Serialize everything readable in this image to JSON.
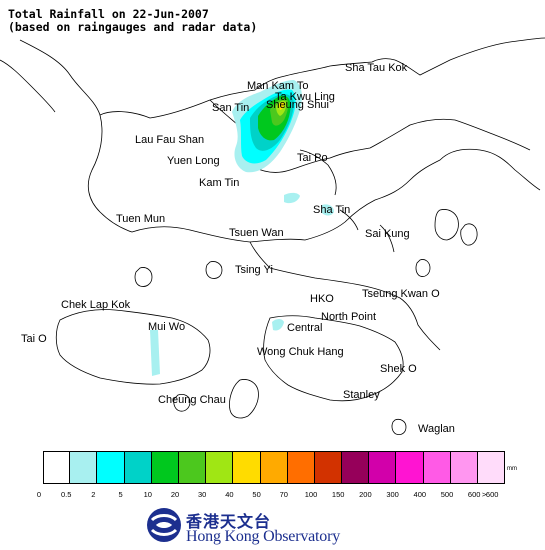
{
  "title": {
    "line1": "Total Rainfall on 22-Jun-2007",
    "line2": "(based on raingauges and radar data)"
  },
  "places": [
    {
      "name": "Sha Tau Kok"
    },
    {
      "name": "Man Kam To"
    },
    {
      "name": "Ta Kwu Ling"
    },
    {
      "name": "San Tin"
    },
    {
      "name": "Sheung Shui"
    },
    {
      "name": "Lau Fau Shan"
    },
    {
      "name": "Yuen Long"
    },
    {
      "name": "Tai Po"
    },
    {
      "name": "Kam Tin"
    },
    {
      "name": "Sha Tin"
    },
    {
      "name": "Tuen Mun"
    },
    {
      "name": "Tsuen Wan"
    },
    {
      "name": "Sai Kung"
    },
    {
      "name": "Tsing Yi"
    },
    {
      "name": "Chek Lap Kok"
    },
    {
      "name": "HKO"
    },
    {
      "name": "Tseung Kwan O"
    },
    {
      "name": "North Point"
    },
    {
      "name": "Mui Wo"
    },
    {
      "name": "Central"
    },
    {
      "name": "Tai O"
    },
    {
      "name": "Wong Chuk Hang"
    },
    {
      "name": "Shek O"
    },
    {
      "name": "Cheung Chau"
    },
    {
      "name": "Stanley"
    },
    {
      "name": "Waglan"
    }
  ],
  "legend": {
    "unit": "mm",
    "colors": [
      "#ffffff",
      "#a8f0f0",
      "#00ffff",
      "#00d2c8",
      "#00c81e",
      "#4cc81e",
      "#a0e614",
      "#ffdc00",
      "#ffaa00",
      "#ff6e00",
      "#d23200",
      "#96005a",
      "#d200aa",
      "#ff14d2",
      "#ff5ae6",
      "#ff96f0",
      "#ffdcfa"
    ],
    "ticks": [
      "0",
      "0.5",
      "2",
      "5",
      "10",
      "20",
      "30",
      "40",
      "50",
      "70",
      "100",
      "150",
      "200",
      "300",
      "400",
      "500",
      "600",
      ">",
      "600"
    ]
  },
  "logo": {
    "chinese": "香港天文台",
    "english": "Hong Kong Observatory"
  }
}
